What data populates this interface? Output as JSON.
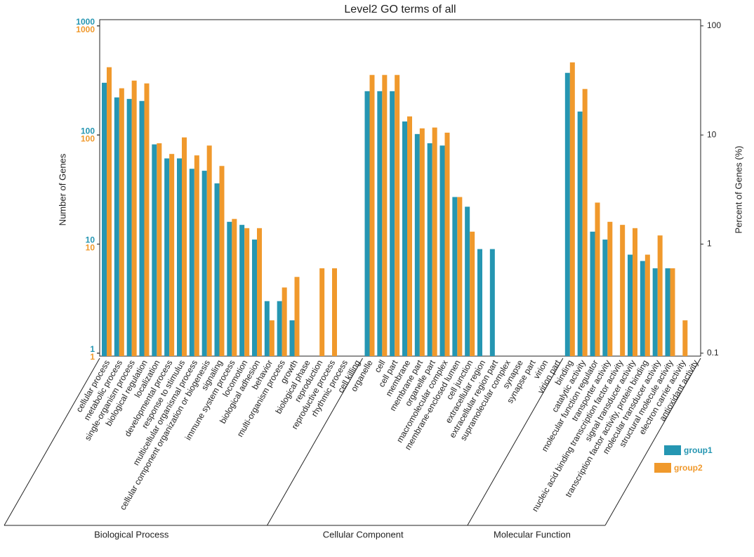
{
  "chart_data": {
    "type": "bar",
    "title": "Level2 GO terms of all",
    "ylabel": "Number of Genes",
    "y2label": "Percent of Genes (%)",
    "log_scale": true,
    "legend": "right",
    "groups": [
      "Biological Process",
      "Cellular Component",
      "Molecular Function"
    ],
    "categories": [
      [
        "cellular process",
        "metabolic process",
        "single-organism process",
        "biological regulation",
        "localization",
        "developmental process",
        "response to stimulus",
        "multicellular organismal process",
        "cellular component organization or biogenesis",
        "signaling",
        "immune system process",
        "locomotion",
        "biological adhesion",
        "behavior",
        "multi-organism process",
        "growth",
        "biological phase",
        "reproduction",
        "reproductive process",
        "rhythmic process",
        "cell killing"
      ],
      [
        "organelle",
        "cell",
        "cell part",
        "membrane",
        "membrane part",
        "organelle part",
        "macromolecular complex",
        "membrane-enclosed lumen",
        "cell junction",
        "extracellular region",
        "extracellular region part",
        "supramolecular complex",
        "synapse",
        "synapse part",
        "virion",
        "virion part"
      ],
      [
        "binding",
        "catalytic activity",
        "molecular function regulator",
        "transporter activity",
        "nucleic acid binding transcription factor activity",
        "signal transducer activity",
        "transcription factor activity, protein binding",
        "molecular transducer activity",
        "structural molecule activity",
        "electron carrier activity",
        "antioxidant activity"
      ]
    ],
    "series": [
      {
        "name": "group1",
        "color": "#2596b2",
        "values": [
          [
            301,
            221,
            214,
            205,
            82,
            61,
            61,
            49,
            47,
            36,
            16,
            15,
            11,
            3,
            3,
            2,
            null,
            null,
            null,
            null,
            null
          ],
          [
            252,
            252,
            252,
            133,
            102,
            84,
            80,
            27,
            22,
            9,
            9,
            null,
            null,
            null,
            null,
            null
          ],
          [
            371,
            164,
            13,
            11,
            null,
            8,
            7,
            6,
            6,
            null,
            null
          ]
        ]
      },
      {
        "name": "group2",
        "color": "#f0992c",
        "values": [
          [
            418,
            268,
            315,
            297,
            84,
            67,
            95,
            65,
            80,
            52,
            17,
            14,
            14,
            2,
            4,
            5,
            null,
            6,
            6,
            null,
            null
          ],
          [
            355,
            355,
            355,
            148,
            115,
            117,
            105,
            27,
            13,
            null,
            null,
            null,
            null,
            null,
            null,
            null
          ],
          [
            463,
            264,
            24,
            16,
            15,
            14,
            8,
            12,
            6,
            2,
            null
          ]
        ]
      }
    ],
    "ylim": [
      0.94,
      1140
    ],
    "yticks": [
      1,
      10,
      100,
      1000
    ],
    "yticks_group2": [
      1,
      10,
      100,
      1000
    ],
    "y2lim": [
      0.094,
      114
    ],
    "y2ticks": [
      0.1,
      1,
      10,
      100
    ]
  }
}
